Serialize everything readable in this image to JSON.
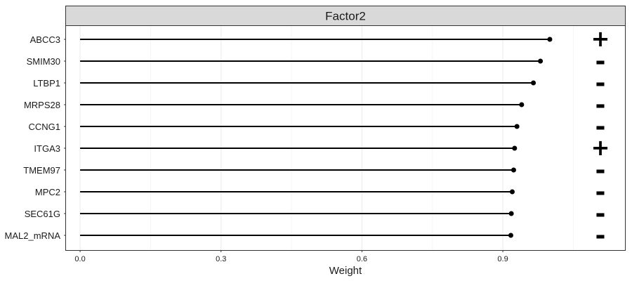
{
  "chart_data": {
    "type": "lollipop",
    "facet_title": "Factor2",
    "xlabel": "Weight",
    "ylabel": "",
    "xlim": [
      -0.03,
      1.16
    ],
    "x_ticks": [
      0.0,
      0.3,
      0.6,
      0.9
    ],
    "x_tick_labels": [
      "0.0",
      "0.3",
      "0.6",
      "0.9"
    ],
    "grid": true,
    "features": [
      "ABCC3",
      "SMIM30",
      "LTBP1",
      "MRPS28",
      "CCNG1",
      "ITGA3",
      "TMEM97",
      "MPC2",
      "SEC61G",
      "MAL2_mRNA"
    ],
    "values": [
      1.0,
      0.98,
      0.965,
      0.94,
      0.93,
      0.925,
      0.923,
      0.92,
      0.918,
      0.917
    ],
    "signs": [
      "+",
      "-",
      "-",
      "-",
      "-",
      "+",
      "-",
      "-",
      "-",
      "-"
    ],
    "colors": {
      "strip_fill": "#d9d9d9",
      "strip_border": "#333333",
      "panel_border": "#333333",
      "grid_major": "#ebebeb",
      "grid_minor": "#f5f5f5",
      "segment": "#000000",
      "point": "#000000"
    }
  }
}
